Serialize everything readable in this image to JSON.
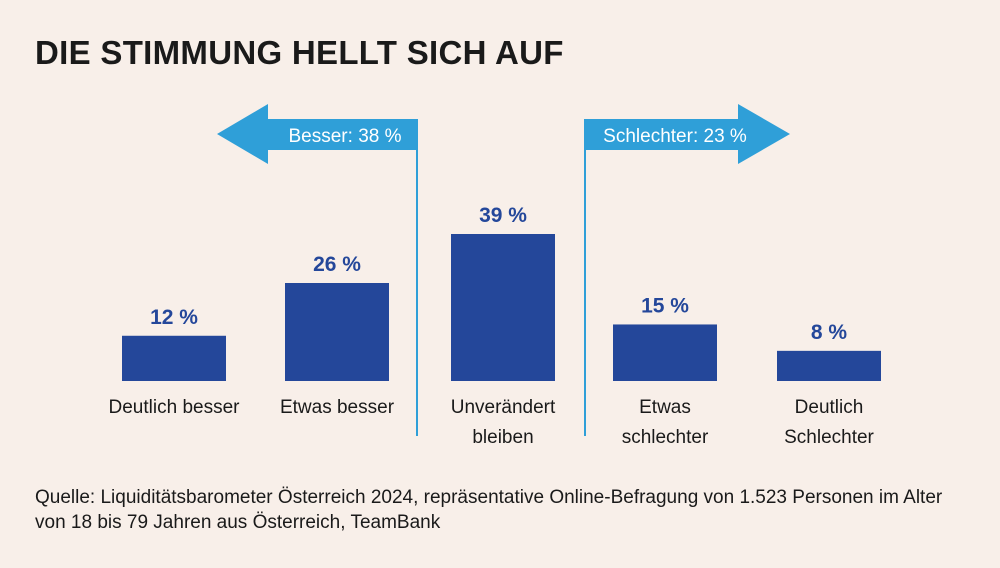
{
  "title": "DIE STIMMUNG HELLT SICH AUF",
  "groups": {
    "left_label": "Besser: 38 %",
    "right_label": "Schlechter: 23 %"
  },
  "chart_data": {
    "type": "bar",
    "title": "DIE STIMMUNG HELLT SICH AUF",
    "categories": [
      [
        "Deutlich besser"
      ],
      [
        "Etwas besser"
      ],
      [
        "Unverändert",
        "bleiben"
      ],
      [
        "Etwas",
        "schlechter"
      ],
      [
        "Deutlich",
        "Schlechter"
      ]
    ],
    "values": [
      12,
      26,
      39,
      15,
      8
    ],
    "value_labels": [
      "12 %",
      "26 %",
      "39 %",
      "15 %",
      "8 %"
    ],
    "unit": "%",
    "ylim": [
      0,
      39
    ],
    "grid": false
  },
  "colors": {
    "bar": "#24479a",
    "arrow": "#2f9fd8",
    "arrow_text": "#ffffff",
    "value_label": "#24479a",
    "background": "#f8efe9"
  },
  "source": "Quelle: Liquiditätsbarometer Österreich 2024, repräsentative Online-Befragung von 1.523 Personen im Alter von 18 bis 79 Jahren aus Österreich, TeamBank"
}
